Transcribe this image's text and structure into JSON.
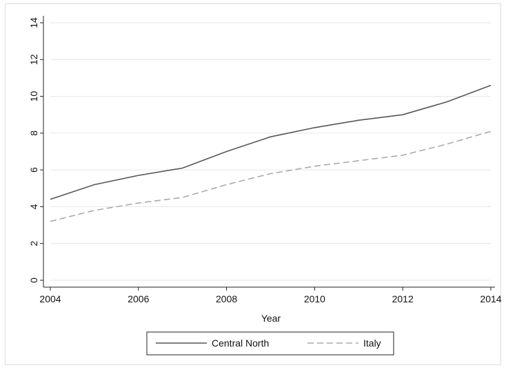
{
  "chart_data": {
    "type": "line",
    "title": "",
    "xlabel": "Year",
    "ylabel": "",
    "x": [
      2004,
      2005,
      2006,
      2007,
      2008,
      2009,
      2010,
      2011,
      2012,
      2013,
      2014
    ],
    "xticks": [
      2004,
      2006,
      2008,
      2010,
      2012,
      2014
    ],
    "yticks": [
      0,
      2,
      4,
      6,
      8,
      10,
      12,
      14
    ],
    "xlim": [
      2004,
      2014
    ],
    "ylim": [
      0,
      14
    ],
    "grid": true,
    "legend_position": "bottom",
    "series": [
      {
        "name": "Central North",
        "style": "solid",
        "color": "#555555",
        "values": [
          4.4,
          5.2,
          5.7,
          6.1,
          7.0,
          7.8,
          8.3,
          8.7,
          9.0,
          9.7,
          10.6
        ]
      },
      {
        "name": "Italy",
        "style": "dashed",
        "color": "#aaaaaa",
        "values": [
          3.2,
          3.8,
          4.2,
          4.5,
          5.2,
          5.8,
          6.2,
          6.5,
          6.8,
          7.4,
          8.1
        ]
      }
    ]
  }
}
